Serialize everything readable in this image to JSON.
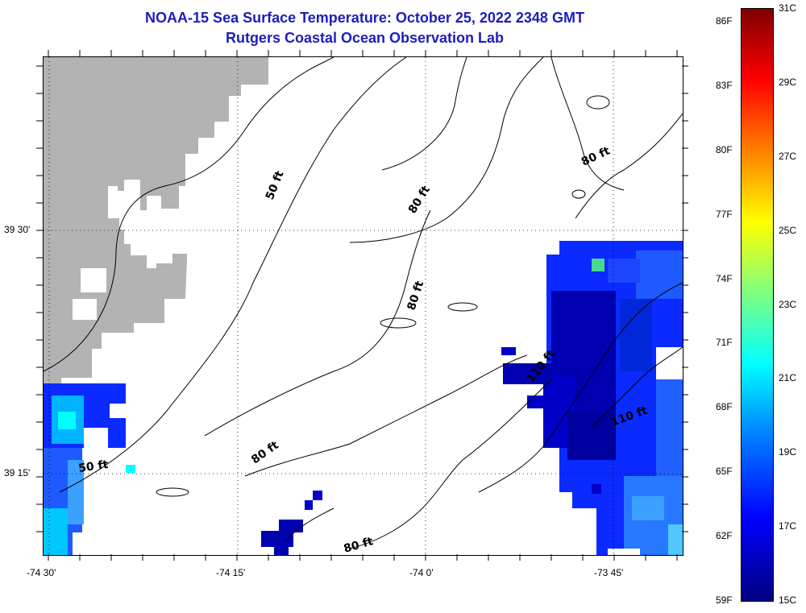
{
  "title": {
    "line1": "NOAA-15 Sea Surface Temperature:  October 25, 2022 2348 GMT",
    "line2": "Rutgers Coastal Ocean Observation Lab"
  },
  "axes": {
    "x_ticks": [
      "-74 30'",
      "-74 15'",
      "-74 0'",
      "-73 45'"
    ],
    "y_ticks": [
      "39 30'",
      "39 15'"
    ]
  },
  "contour_labels": [
    "50 ft",
    "80 ft",
    "80 ft",
    "80 ft",
    "80 ft",
    "50 ft",
    "110 ft",
    "110 ft",
    "80 ft"
  ],
  "colorbar": {
    "fahrenheit": [
      "59F",
      "62F",
      "65F",
      "68F",
      "71F",
      "74F",
      "77F",
      "80F",
      "83F",
      "86F"
    ],
    "celsius": [
      "15C",
      "17C",
      "19C",
      "21C",
      "23C",
      "25C",
      "27C",
      "29C",
      "31C"
    ],
    "range_c": [
      15,
      31
    ]
  },
  "colors": {
    "title": "#1d1dbd",
    "land": "#b3b3b3",
    "sst_deep_blue": "#0000a0",
    "sst_blue": "#0a2aff",
    "sst_cyan": "#00c8ff"
  }
}
